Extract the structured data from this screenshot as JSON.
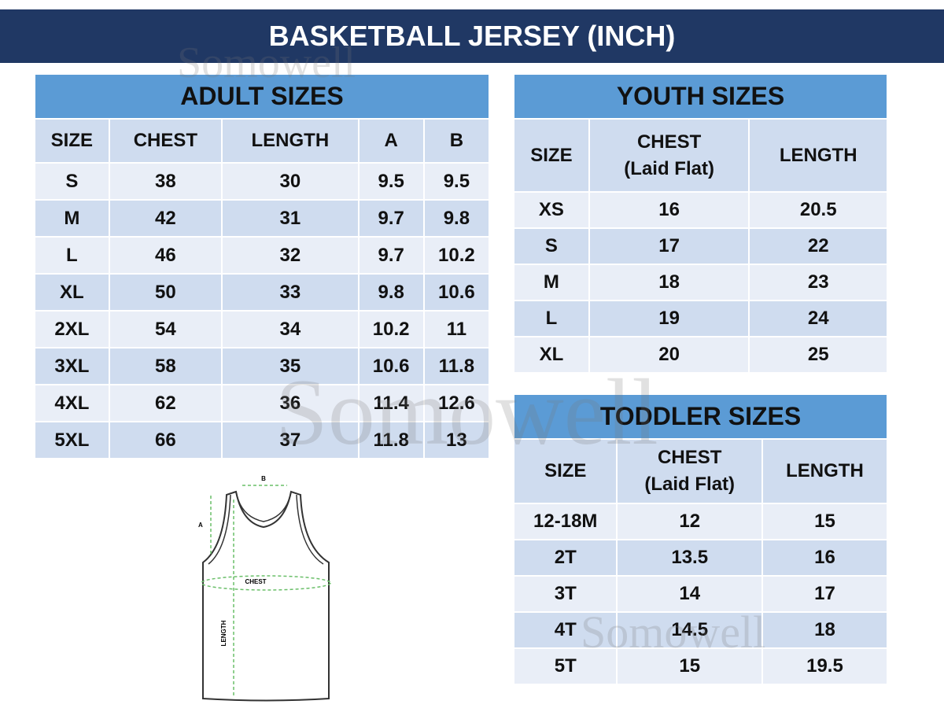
{
  "title": "BASKETBALL JERSEY (INCH)",
  "watermark": "Somowell",
  "colors": {
    "banner": "#203864",
    "table_title": "#5b9bd5",
    "header_row": "#cfdcef",
    "row_light": "#e9eef7",
    "row_dark": "#cfdcef",
    "arrows": "#6abf69"
  },
  "adult": {
    "title": "ADULT SIZES",
    "headers": [
      "SIZE",
      "CHEST",
      "LENGTH",
      "A",
      "B"
    ],
    "rows": [
      [
        "S",
        "38",
        "30",
        "9.5",
        "9.5"
      ],
      [
        "M",
        "42",
        "31",
        "9.7",
        "9.8"
      ],
      [
        "L",
        "46",
        "32",
        "9.7",
        "10.2"
      ],
      [
        "XL",
        "50",
        "33",
        "9.8",
        "10.6"
      ],
      [
        "2XL",
        "54",
        "34",
        "10.2",
        "11"
      ],
      [
        "3XL",
        "58",
        "35",
        "10.6",
        "11.8"
      ],
      [
        "4XL",
        "62",
        "36",
        "11.4",
        "12.6"
      ],
      [
        "5XL",
        "66",
        "37",
        "11.8",
        "13"
      ]
    ]
  },
  "youth": {
    "title": "YOUTH SIZES",
    "headers": [
      "SIZE",
      "CHEST\n(Laid Flat)",
      "LENGTH"
    ],
    "rows": [
      [
        "XS",
        "16",
        "20.5"
      ],
      [
        "S",
        "17",
        "22"
      ],
      [
        "M",
        "18",
        "23"
      ],
      [
        "L",
        "19",
        "24"
      ],
      [
        "XL",
        "20",
        "25"
      ]
    ]
  },
  "toddler": {
    "title": "TODDLER SIZES",
    "headers": [
      "SIZE",
      "CHEST\n(Laid Flat)",
      "LENGTH"
    ],
    "rows": [
      [
        "12-18M",
        "12",
        "15"
      ],
      [
        "2T",
        "13.5",
        "16"
      ],
      [
        "3T",
        "14",
        "17"
      ],
      [
        "4T",
        "14.5",
        "18"
      ],
      [
        "5T",
        "15",
        "19.5"
      ]
    ]
  },
  "diagram": {
    "labels": {
      "a": "A",
      "b": "B",
      "chest": "CHEST",
      "length": "LENGTH"
    }
  }
}
